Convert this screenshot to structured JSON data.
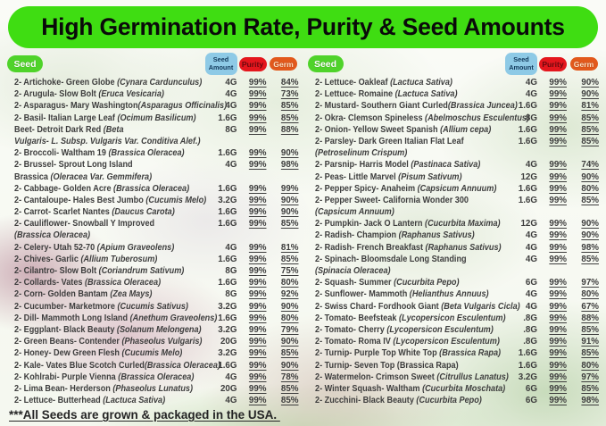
{
  "banner": {
    "title": "High Germination Rate, Purity & Seed Amounts"
  },
  "header": {
    "seed_label": "Seed",
    "amount_label": "Seed Amount",
    "purity_label": "Purity",
    "germ_label": "Germ"
  },
  "footer": {
    "note": "***All Seeds are grown & packaged in the USA. "
  },
  "colors": {
    "banner_bg": "#3fdd12",
    "banner_text": "#0a0a0a",
    "seed_badge_bg": "#4fd32a",
    "seed_badge_text": "#ffffff",
    "amount_badge_bg": "#8ecae6",
    "amount_badge_text": "#123a5c",
    "purity_badge_bg": "#e4161d",
    "purity_badge_text": "#69090e",
    "germ_badge_bg": "#e2591c",
    "germ_badge_text": "#ffe3c2",
    "row_text": "#3d3d3d"
  },
  "table": {
    "columns": [
      {
        "rows": [
          {
            "plain": "2- Artichoke- Green Globe ",
            "latin": "(Cynara Cardunculus)",
            "amount": "4G",
            "purity": "99%",
            "germ": "84%"
          },
          {
            "plain": "2- Arugula- Slow Bolt ",
            "latin": "(Eruca Vesicaria)",
            "amount": "4G",
            "purity": "99%",
            "germ": "73%"
          },
          {
            "plain": "2- Asparagus- Mary Washington",
            "latin": "(Asparagus Officinalis)",
            "amount": "4G",
            "purity": "99%",
            "germ": "85%"
          },
          {
            "plain": "2- Basil- Italian Large Leaf ",
            "latin": "(Ocimum Basilicum)",
            "amount": "1.6G",
            "purity": "99%",
            "germ": "85%"
          },
          {
            "plain": "Beet- Detroit Dark Red ",
            "latin": "(Beta",
            "amount": "8G",
            "purity": "99%",
            "germ": "88%"
          },
          {
            "plain": "",
            "latin": "Vulgaris- L. Subsp. Vulgaris Var. Conditiva Alef.)",
            "amount": "",
            "purity": "",
            "germ": ""
          },
          {
            "plain": "2- Broccoli- Waltham 19 ",
            "latin": "(Brassica Oleracea)",
            "amount": "1.6G",
            "purity": "99%",
            "germ": "90%"
          },
          {
            "plain": "2- Brussel- Sprout Long Island",
            "latin": "",
            "amount": "4G",
            "purity": "99%",
            "germ": "98%"
          },
          {
            "plain": "Brassica ",
            "latin": "(Oleracea Var. Gemmifera)",
            "amount": "",
            "purity": "",
            "germ": ""
          },
          {
            "plain": "2- Cabbage- Golden Acre ",
            "latin": "(Brassica Oleracea)",
            "amount": "1.6G",
            "purity": "99%",
            "germ": "99%"
          },
          {
            "plain": "2- Cantaloupe- Hales Best Jumbo ",
            "latin": "(Cucumis Melo)",
            "amount": "3.2G",
            "purity": "99%",
            "germ": "90%"
          },
          {
            "plain": "2- Carrot- Scarlet Nantes ",
            "latin": "(Daucus Carota)",
            "amount": "1.6G",
            "purity": "99%",
            "germ": "90%"
          },
          {
            "plain": "2- Cauliflower- Snowball Y Improved",
            "latin": "",
            "amount": "1.6G",
            "purity": "99%",
            "germ": "85%"
          },
          {
            "plain": "",
            "latin": "(Brassica Oleracea)",
            "amount": "",
            "purity": "",
            "germ": ""
          },
          {
            "plain": "2- Celery- Utah 52-70 ",
            "latin": "(Apium Graveolens)",
            "amount": "4G",
            "purity": "99%",
            "germ": "81%"
          },
          {
            "plain": "2- Chives- Garlic ",
            "latin": "(Allium Tuberosum)",
            "amount": "1.6G",
            "purity": "99%",
            "germ": "85%"
          },
          {
            "plain": "2- Cilantro- Slow Bolt ",
            "latin": "(Coriandrum Sativum)",
            "amount": "8G",
            "purity": "99%",
            "germ": "75%"
          },
          {
            "plain": "2- Collards- Vates ",
            "latin": "(Brassica Oleracea)",
            "amount": "1.6G",
            "purity": "99%",
            "germ": "80%"
          },
          {
            "plain": "2- Corn- Golden Bantam ",
            "latin": "(Zea Mays)",
            "amount": "8G",
            "purity": "99%",
            "germ": "92%"
          },
          {
            "plain": "2- Cucumber- Marketmore ",
            "latin": "(Cucumis Sativus)",
            "amount": "3.2G",
            "purity": "99%",
            "germ": "90%"
          },
          {
            "plain": "2- Dill- Mammoth Long Island ",
            "latin": "(Anethum Graveolens)",
            "amount": "1.6G",
            "purity": "99%",
            "germ": "80%"
          },
          {
            "plain": "2- Eggplant- Black Beauty ",
            "latin": "(Solanum Melongena)",
            "amount": "3.2G",
            "purity": "99%",
            "germ": "79%"
          },
          {
            "plain": "2- Green Beans- Contender ",
            "latin": "(Phaseolus Vulgaris)",
            "amount": "20G",
            "purity": "99%",
            "germ": "90%"
          },
          {
            "plain": "2- Honey- Dew Green Flesh ",
            "latin": "(Cucumis Melo)",
            "amount": "3.2G",
            "purity": "99%",
            "germ": "85%"
          },
          {
            "plain": "2- Kale- Vates Blue Scotch Curled",
            "latin": "(Brassica Oleracea)",
            "amount": "1.6G",
            "purity": "99%",
            "germ": "90%"
          },
          {
            "plain": "2- Kohlrabi- Purple Vienna ",
            "latin": "(Brassica Oleracea)",
            "amount": "4G",
            "purity": "99%",
            "germ": "78%"
          },
          {
            "plain": "2- Lima Bean- Herderson ",
            "latin": "(Phaseolus Lunatus)",
            "amount": "20G",
            "purity": "99%",
            "germ": "85%"
          },
          {
            "plain": "2- Lettuce- Butterhead ",
            "latin": "(Lactuca Sativa)",
            "amount": "4G",
            "purity": "99%",
            "germ": "85%"
          }
        ]
      },
      {
        "rows": [
          {
            "plain": "2- Lettuce- Oakleaf ",
            "latin": "(Lactuca Sativa)",
            "amount": "4G",
            "purity": "99%",
            "germ": "90%"
          },
          {
            "plain": "2- Lettuce- Romaine ",
            "latin": "(Lactuca Sativa)",
            "amount": "4G",
            "purity": "99%",
            "germ": "90%"
          },
          {
            "plain": "2- Mustard- Southern Giant Curled",
            "latin": "(Brassica Juncea)",
            "amount": "1.6G",
            "purity": "99%",
            "germ": "81%"
          },
          {
            "plain": "2- Okra- Clemson Spineless ",
            "latin": "(Abelmoschus Esculentus)",
            "amount": "8G",
            "purity": "99%",
            "germ": "85%"
          },
          {
            "plain": "2- Onion- Yellow Sweet Spanish ",
            "latin": "(Allium cepa)",
            "amount": "1.6G",
            "purity": "99%",
            "germ": "85%"
          },
          {
            "plain": "2- Parsley- Dark Green Italian Flat Leaf",
            "latin": "",
            "amount": "1.6G",
            "purity": "99%",
            "germ": "85%"
          },
          {
            "plain": "",
            "latin": "(Petroselinum Crispum)",
            "amount": "",
            "purity": "",
            "germ": ""
          },
          {
            "plain": "2- Parsnip- Harris Model ",
            "latin": "(Pastinaca Sativa)",
            "amount": "4G",
            "purity": "99%",
            "germ": "74%"
          },
          {
            "plain": "2- Peas- Little Marvel ",
            "latin": "(Pisum Sativum)",
            "amount": "12G",
            "purity": "99%",
            "germ": "90%"
          },
          {
            "plain": "2- Pepper Spicy- Anaheim ",
            "latin": "(Capsicum Annuum)",
            "amount": "1.6G",
            "purity": "99%",
            "germ": "80%"
          },
          {
            "plain": "2- Pepper Sweet- California Wonder 300",
            "latin": "",
            "amount": "1.6G",
            "purity": "99%",
            "germ": "85%"
          },
          {
            "plain": "",
            "latin": "(Capsicum Annuum)",
            "amount": "",
            "purity": "",
            "germ": ""
          },
          {
            "plain": "2- Pumpkin- Jack O Lantern ",
            "latin": "(Cucurbita Maxima)",
            "amount": "12G",
            "purity": "99%",
            "germ": "90%"
          },
          {
            "plain": "2- Radish- Champion ",
            "latin": "(Raphanus Sativus)",
            "amount": "4G",
            "purity": "99%",
            "germ": "90%"
          },
          {
            "plain": "2- Radish- French Breakfast ",
            "latin": "(Raphanus Sativus)",
            "amount": "4G",
            "purity": "99%",
            "germ": "98%"
          },
          {
            "plain": "2- Spinach- Bloomsdale Long Standing",
            "latin": "",
            "amount": "4G",
            "purity": "99%",
            "germ": "85%"
          },
          {
            "plain": "",
            "latin": "(Spinacia Oleracea)",
            "amount": "",
            "purity": "",
            "germ": ""
          },
          {
            "plain": "2- Squash- Summer ",
            "latin": "(Cucurbita Pepo)",
            "amount": "6G",
            "purity": "99%",
            "germ": "97%"
          },
          {
            "plain": "2- Sunflower- Mammoth ",
            "latin": "(Helianthus Annuus)",
            "amount": "4G",
            "purity": "99%",
            "germ": "80%"
          },
          {
            "plain": "2- Swiss Chard- Fordhook Giant ",
            "latin": "(Beta Vulgaris Cicla)",
            "amount": "4G",
            "purity": "99%",
            "germ": "67%"
          },
          {
            "plain": "2- Tomato- Beefsteak ",
            "latin": "(Lycopersicon Esculentum)",
            "amount": ".8G",
            "purity": "99%",
            "germ": "88%"
          },
          {
            "plain": "2- Tomato- Cherry ",
            "latin": "(Lycopersicon Esculentum)",
            "amount": ".8G",
            "purity": "99%",
            "germ": "85%"
          },
          {
            "plain": "2- Tomato- Roma IV ",
            "latin": "(Lycopersicon Esculentum)",
            "amount": ".8G",
            "purity": "99%",
            "germ": "91%"
          },
          {
            "plain": "2- Turnip- Purple Top White Top ",
            "latin": "(Brassica Rapa)",
            "amount": "1.6G",
            "purity": "99%",
            "germ": "85%"
          },
          {
            "plain": "2- Turnip- Seven Top (Brassica Rapa)",
            "latin": "",
            "amount": "1.6G",
            "purity": "99%",
            "germ": "80%"
          },
          {
            "plain": "2- Watermelon- Crimson Sweet ",
            "latin": "(Citrullus Lanatus)",
            "amount": "3.2G",
            "purity": "99%",
            "germ": "97%"
          },
          {
            "plain": "2- Winter Squash- Waltham ",
            "latin": "(Cucurbita Moschata)",
            "amount": "6G",
            "purity": "99%",
            "germ": "85%"
          },
          {
            "plain": "2- Zucchini- Black Beauty ",
            "latin": "(Cucurbita Pepo)",
            "amount": "6G",
            "purity": "99%",
            "germ": "98%"
          }
        ]
      }
    ]
  }
}
